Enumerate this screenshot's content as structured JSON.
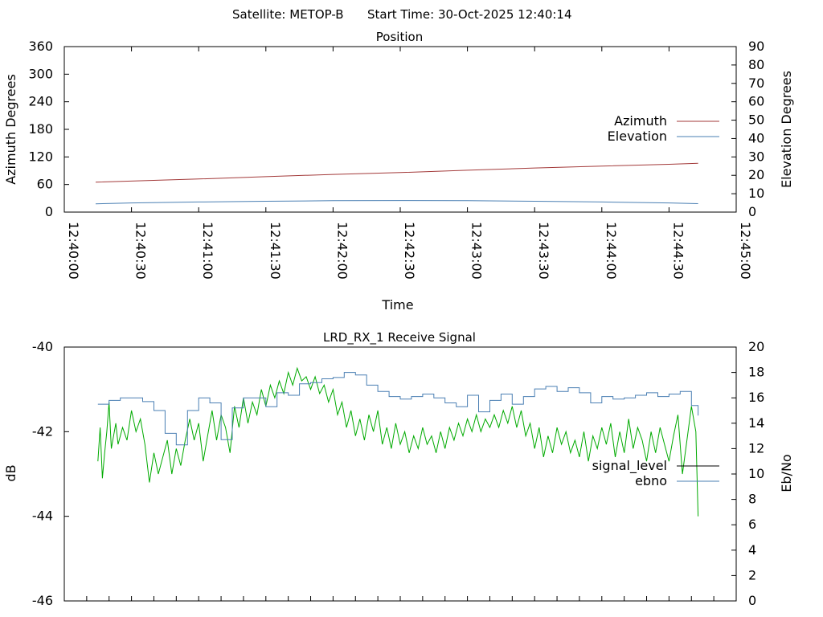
{
  "header": {
    "satellite_label": "Satellite: METOP-B",
    "start_time_label": "Start Time: 30-Oct-2025 12:40:14"
  },
  "chart_data": [
    {
      "type": "line",
      "title": "Position",
      "xlabel": "Time",
      "ylabel": "Azimuth Degrees",
      "y2label": "Elevation Degrees",
      "xlim": [
        "12:40:00",
        "12:45:00"
      ],
      "ylim": [
        0,
        360
      ],
      "y2lim": [
        0,
        90
      ],
      "grid": false,
      "legend_position": "right",
      "x_ticks": [
        "12:40:00",
        "12:40:30",
        "12:41:00",
        "12:41:30",
        "12:42:00",
        "12:42:30",
        "12:43:00",
        "12:43:30",
        "12:44:00",
        "12:44:30",
        "12:45:00"
      ],
      "y_ticks": [
        "0",
        "60",
        "120",
        "180",
        "240",
        "300",
        "360"
      ],
      "y2_ticks": [
        "0",
        "10",
        "20",
        "30",
        "40",
        "50",
        "60",
        "70",
        "80",
        "90"
      ],
      "series": [
        {
          "name": "Azimuth",
          "axis": "left",
          "color": "#a33a3a",
          "x": [
            "12:40:14",
            "12:41:00",
            "12:41:30",
            "12:42:00",
            "12:42:30",
            "12:43:00",
            "12:43:30",
            "12:44:00",
            "12:44:30",
            "12:44:43"
          ],
          "values": [
            65,
            72,
            77,
            82,
            86,
            91,
            96,
            100,
            104,
            106
          ]
        },
        {
          "name": "Elevation",
          "axis": "right",
          "color": "#4a7fb3",
          "x": [
            "12:40:14",
            "12:40:30",
            "12:41:00",
            "12:41:30",
            "12:42:00",
            "12:42:30",
            "12:43:00",
            "12:43:30",
            "12:44:00",
            "12:44:30",
            "12:44:43"
          ],
          "values": [
            4.5,
            5.0,
            5.5,
            5.9,
            6.2,
            6.3,
            6.2,
            5.9,
            5.5,
            5.0,
            4.6
          ]
        }
      ]
    },
    {
      "type": "line",
      "title": "LRD_RX_1 Receive Signal",
      "ylabel": "dB",
      "y2label": "Eb/No",
      "xlim": [
        "12:40:00",
        "12:45:00"
      ],
      "ylim": [
        -46,
        -40
      ],
      "y2lim": [
        0,
        20
      ],
      "grid": false,
      "legend_position": "right",
      "y_ticks": [
        "-40",
        "-42",
        "-44",
        "-46"
      ],
      "y2_ticks": [
        "0",
        "2",
        "4",
        "6",
        "8",
        "10",
        "12",
        "14",
        "16",
        "18",
        "20"
      ],
      "series": [
        {
          "name": "signal_level",
          "axis": "left",
          "color": "#00aa00",
          "legend_color": "#000000",
          "x": [
            "12:40:15",
            "12:40:16",
            "12:40:17",
            "12:40:18",
            "12:40:19",
            "12:40:20",
            "12:40:21",
            "12:40:23",
            "12:40:24",
            "12:40:26",
            "12:40:28",
            "12:40:30",
            "12:40:32",
            "12:40:34",
            "12:40:36",
            "12:40:38",
            "12:40:40",
            "12:40:42",
            "12:40:44",
            "12:40:46",
            "12:40:48",
            "12:40:50",
            "12:40:52",
            "12:40:54",
            "12:40:56",
            "12:40:58",
            "12:41:00",
            "12:41:02",
            "12:41:04",
            "12:41:06",
            "12:41:08",
            "12:41:10",
            "12:41:12",
            "12:41:14",
            "12:41:16",
            "12:41:18",
            "12:41:20",
            "12:41:22",
            "12:41:24",
            "12:41:26",
            "12:41:28",
            "12:41:30",
            "12:41:32",
            "12:41:34",
            "12:41:36",
            "12:41:38",
            "12:41:40",
            "12:41:42",
            "12:41:44",
            "12:41:46",
            "12:41:48",
            "12:41:50",
            "12:41:52",
            "12:41:54",
            "12:41:56",
            "12:41:58",
            "12:42:00",
            "12:42:02",
            "12:42:04",
            "12:42:06",
            "12:42:08",
            "12:42:10",
            "12:42:12",
            "12:42:14",
            "12:42:16",
            "12:42:18",
            "12:42:20",
            "12:42:22",
            "12:42:24",
            "12:42:26",
            "12:42:28",
            "12:42:30",
            "12:42:32",
            "12:42:34",
            "12:42:36",
            "12:42:38",
            "12:42:40",
            "12:42:42",
            "12:42:44",
            "12:42:46",
            "12:42:48",
            "12:42:50",
            "12:42:52",
            "12:42:54",
            "12:42:56",
            "12:42:58",
            "12:43:00",
            "12:43:02",
            "12:43:04",
            "12:43:06",
            "12:43:08",
            "12:43:10",
            "12:43:12",
            "12:43:14",
            "12:43:16",
            "12:43:18",
            "12:43:20",
            "12:43:22",
            "12:43:24",
            "12:43:26",
            "12:43:28",
            "12:43:30",
            "12:43:32",
            "12:43:34",
            "12:43:36",
            "12:43:38",
            "12:43:40",
            "12:43:42",
            "12:43:44",
            "12:43:46",
            "12:43:48",
            "12:43:50",
            "12:43:52",
            "12:43:54",
            "12:43:56",
            "12:43:58",
            "12:44:00",
            "12:44:02",
            "12:44:04",
            "12:44:06",
            "12:44:08",
            "12:44:10",
            "12:44:12",
            "12:44:14",
            "12:44:16",
            "12:44:18",
            "12:44:20",
            "12:44:22",
            "12:44:24",
            "12:44:26",
            "12:44:28",
            "12:44:30",
            "12:44:32",
            "12:44:34",
            "12:44:36",
            "12:44:38",
            "12:44:40",
            "12:44:42",
            "12:44:43"
          ],
          "values": [
            -42.7,
            -41.9,
            -43.1,
            -42.5,
            -42.0,
            -41.3,
            -42.4,
            -41.8,
            -42.3,
            -41.9,
            -42.2,
            -41.5,
            -42.0,
            -41.7,
            -42.3,
            -43.2,
            -42.5,
            -43.0,
            -42.6,
            -42.2,
            -43.0,
            -42.4,
            -42.8,
            -42.2,
            -41.7,
            -42.2,
            -41.8,
            -42.7,
            -42.1,
            -41.5,
            -42.2,
            -41.6,
            -41.9,
            -42.5,
            -41.4,
            -41.9,
            -41.2,
            -41.8,
            -41.3,
            -41.6,
            -41.0,
            -41.4,
            -40.9,
            -41.2,
            -40.8,
            -41.1,
            -40.6,
            -40.9,
            -40.5,
            -40.8,
            -40.7,
            -41.0,
            -40.7,
            -41.1,
            -40.9,
            -41.3,
            -41.0,
            -41.6,
            -41.3,
            -41.9,
            -41.5,
            -42.1,
            -41.7,
            -42.2,
            -41.6,
            -42.0,
            -41.5,
            -42.3,
            -41.9,
            -42.4,
            -41.8,
            -42.3,
            -42.0,
            -42.5,
            -42.1,
            -42.4,
            -41.9,
            -42.3,
            -42.1,
            -42.5,
            -42.0,
            -42.4,
            -41.9,
            -42.2,
            -41.8,
            -42.1,
            -41.7,
            -42.0,
            -41.6,
            -42.0,
            -41.7,
            -41.9,
            -41.6,
            -41.9,
            -41.5,
            -41.8,
            -41.4,
            -41.9,
            -41.5,
            -42.1,
            -41.8,
            -42.4,
            -41.9,
            -42.6,
            -42.1,
            -42.5,
            -41.9,
            -42.3,
            -42.0,
            -42.5,
            -42.2,
            -42.6,
            -42.0,
            -42.7,
            -42.1,
            -42.4,
            -41.9,
            -42.3,
            -41.8,
            -42.6,
            -42.0,
            -42.5,
            -41.7,
            -42.4,
            -41.9,
            -42.2,
            -42.7,
            -42.0,
            -42.5,
            -41.9,
            -42.3,
            -42.7,
            -42.1,
            -41.6,
            -43.0,
            -42.2,
            -41.4,
            -42.0,
            -44.0
          ]
        },
        {
          "name": "ebno",
          "axis": "right",
          "color": "#4a7fb3",
          "x": [
            "12:40:15",
            "12:40:20",
            "12:40:25",
            "12:40:30",
            "12:40:35",
            "12:40:40",
            "12:40:45",
            "12:40:50",
            "12:40:55",
            "12:41:00",
            "12:41:05",
            "12:41:10",
            "12:41:15",
            "12:41:20",
            "12:41:25",
            "12:41:30",
            "12:41:35",
            "12:41:40",
            "12:41:45",
            "12:41:50",
            "12:41:55",
            "12:42:00",
            "12:42:05",
            "12:42:10",
            "12:42:15",
            "12:42:20",
            "12:42:25",
            "12:42:30",
            "12:42:35",
            "12:42:40",
            "12:42:45",
            "12:42:50",
            "12:42:55",
            "12:43:00",
            "12:43:05",
            "12:43:10",
            "12:43:15",
            "12:43:20",
            "12:43:25",
            "12:43:30",
            "12:43:35",
            "12:43:40",
            "12:43:45",
            "12:43:50",
            "12:43:55",
            "12:44:00",
            "12:44:05",
            "12:44:10",
            "12:44:15",
            "12:44:20",
            "12:44:25",
            "12:44:30",
            "12:44:35",
            "12:44:40",
            "12:44:43"
          ],
          "values": [
            15.5,
            15.8,
            16.0,
            16.0,
            15.7,
            15.0,
            13.2,
            12.3,
            15.0,
            16.0,
            15.6,
            12.7,
            15.2,
            16.0,
            16.0,
            15.3,
            16.4,
            16.2,
            17.1,
            17.2,
            17.5,
            17.6,
            18.0,
            17.8,
            17.0,
            16.5,
            16.1,
            15.9,
            16.1,
            16.3,
            16.0,
            15.6,
            15.3,
            16.2,
            14.9,
            15.8,
            16.3,
            15.5,
            16.1,
            16.7,
            16.9,
            16.5,
            16.8,
            16.4,
            15.6,
            16.1,
            15.9,
            16.0,
            16.2,
            16.4,
            16.1,
            16.3,
            16.5,
            15.4,
            14.6
          ]
        }
      ]
    }
  ]
}
